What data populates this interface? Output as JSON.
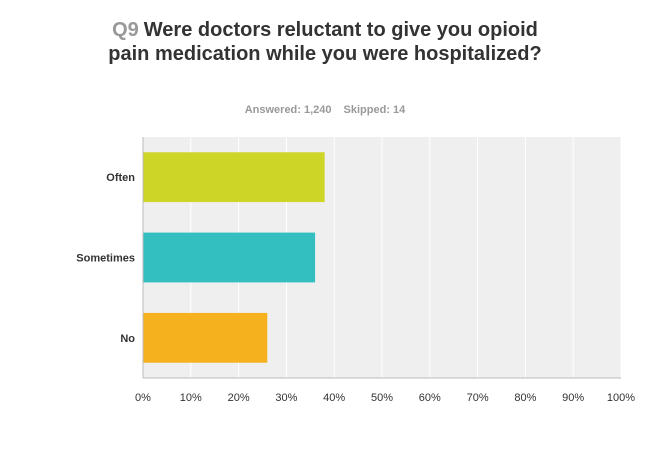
{
  "question": {
    "number": "Q9",
    "text": "Were doctors reluctant to give you opioid pain medication while you were hospitalized?"
  },
  "stats": {
    "answered": "Answered: 1,240",
    "skipped": "Skipped: 14"
  },
  "colors": {
    "plot_bg": "#efefef",
    "grid": "#ffffff",
    "axis": "#bbbbbb",
    "bars": [
      "#cdd626",
      "#33bfbf",
      "#f6b11f"
    ]
  },
  "chart_data": {
    "type": "bar",
    "orientation": "horizontal",
    "categories": [
      "Often",
      "Sometimes",
      "No"
    ],
    "values": [
      38,
      36,
      26
    ],
    "xlim": [
      0,
      100
    ],
    "xticks": [
      "0%",
      "10%",
      "20%",
      "30%",
      "40%",
      "50%",
      "60%",
      "70%",
      "80%",
      "90%",
      "100%"
    ],
    "grid": true,
    "legend": "none"
  }
}
